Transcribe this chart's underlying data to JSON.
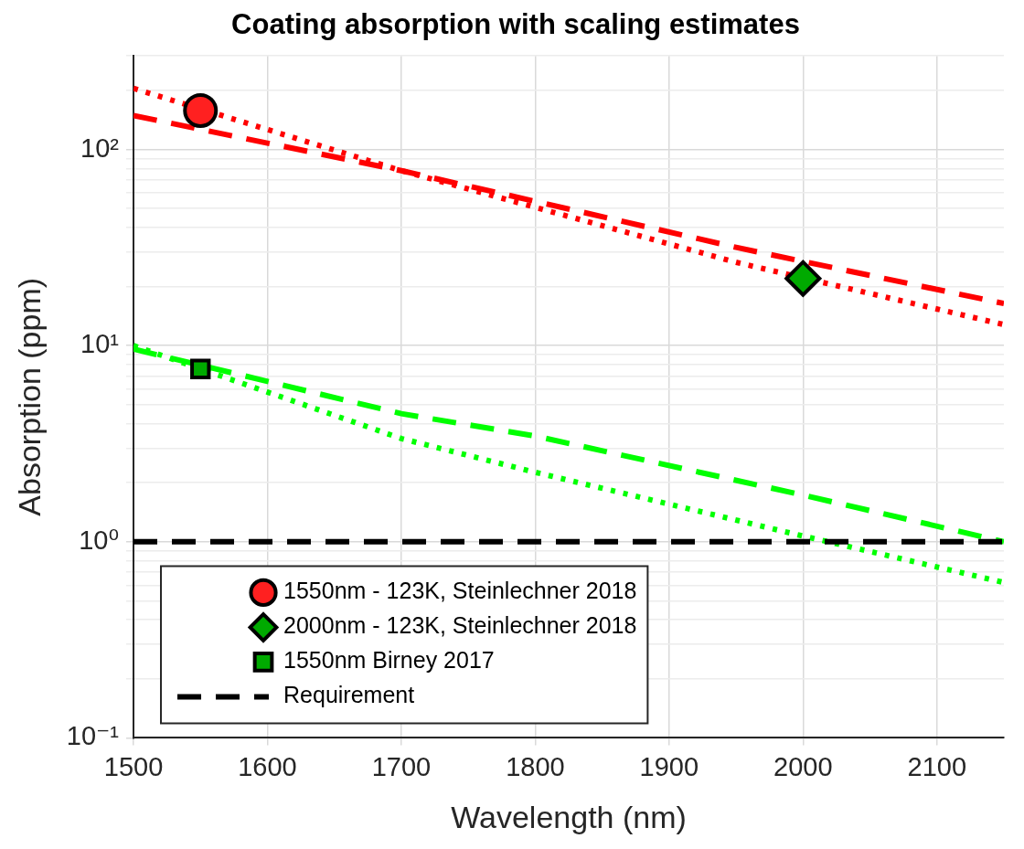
{
  "chart_data": {
    "type": "scatter",
    "title": "Coating absorption with scaling estimates",
    "xlabel": "Wavelength (nm)",
    "ylabel": "Absorption (ppm)",
    "log": "y",
    "grid": true,
    "legend": "bottom left",
    "xlim": [
      1500,
      2150
    ],
    "xticks": [
      1500,
      1600,
      1700,
      1800,
      1900,
      2000,
      2100
    ],
    "ylim": [
      0.1,
      300
    ],
    "yticks": [
      {
        "value": 0.1,
        "label": "10⁻¹"
      },
      {
        "value": 0.2,
        "label": null
      },
      {
        "value": 0.3,
        "label": null
      },
      {
        "value": 0.4,
        "label": null
      },
      {
        "value": 0.5,
        "label": null
      },
      {
        "value": 0.6,
        "label": null
      },
      {
        "value": 0.7,
        "label": null
      },
      {
        "value": 0.8,
        "label": null
      },
      {
        "value": 0.9,
        "label": null
      },
      {
        "value": 1,
        "label": "10⁰"
      },
      {
        "value": 2,
        "label": null
      },
      {
        "value": 3,
        "label": null
      },
      {
        "value": 4,
        "label": null
      },
      {
        "value": 5,
        "label": null
      },
      {
        "value": 6,
        "label": null
      },
      {
        "value": 7,
        "label": null
      },
      {
        "value": 8,
        "label": null
      },
      {
        "value": 9,
        "label": null
      },
      {
        "value": 10,
        "label": "10¹"
      },
      {
        "value": 20,
        "label": null
      },
      {
        "value": 30,
        "label": null
      },
      {
        "value": 40,
        "label": null
      },
      {
        "value": 50,
        "label": null
      },
      {
        "value": 60,
        "label": null
      },
      {
        "value": 70,
        "label": null
      },
      {
        "value": 80,
        "label": null
      },
      {
        "value": 90,
        "label": null
      },
      {
        "value": 100,
        "label": "10²"
      },
      {
        "value": 200,
        "label": null
      },
      {
        "value": 300,
        "label": null
      }
    ],
    "series": [
      {
        "name": "1550nm - 123K, Steinlechner 2018",
        "marker": "circle",
        "color": "#ff2020",
        "x": [
          1550
        ],
        "values": [
          158
        ]
      },
      {
        "name": "2000nm - 123K, Steinlechner 2018",
        "marker": "diamond",
        "color": "#00aa00",
        "x": [
          2000
        ],
        "values": [
          22
        ]
      },
      {
        "name": "1550nm Birney 2017",
        "marker": "square",
        "color": "#00aa00",
        "x": [
          1550
        ],
        "values": [
          7.6
        ]
      },
      {
        "name": "Requirement",
        "type": "line",
        "marker": "none",
        "line_style": "dashed",
        "color": "#000000",
        "x": [
          1500,
          2150
        ],
        "values": [
          1,
          1
        ]
      },
      {
        "type": "line",
        "marker": "none",
        "line_style": "dotted",
        "color": "#ff0000",
        "x": [
          1500,
          1700,
          1950,
          2150
        ],
        "values": [
          205,
          78,
          26.6,
          12.8
        ]
      },
      {
        "type": "line",
        "marker": "none",
        "line_style": "dashed",
        "color": "#ff0000",
        "x": [
          1500,
          1700,
          1950,
          2150
        ],
        "values": [
          149,
          78,
          31.7,
          16.4
        ]
      },
      {
        "type": "line",
        "marker": "none",
        "line_style": "dotted",
        "color": "#00ff00",
        "x": [
          1500,
          1700,
          1800,
          2000,
          2150
        ],
        "values": [
          10,
          3.36,
          2.26,
          1.07,
          0.62
        ]
      },
      {
        "type": "line",
        "marker": "none",
        "line_style": "dashed",
        "color": "#00ff00",
        "x": [
          1500,
          1700,
          1800,
          2000,
          2150
        ],
        "values": [
          9.6,
          4.5,
          3.46,
          1.73,
          1.0
        ]
      }
    ]
  }
}
